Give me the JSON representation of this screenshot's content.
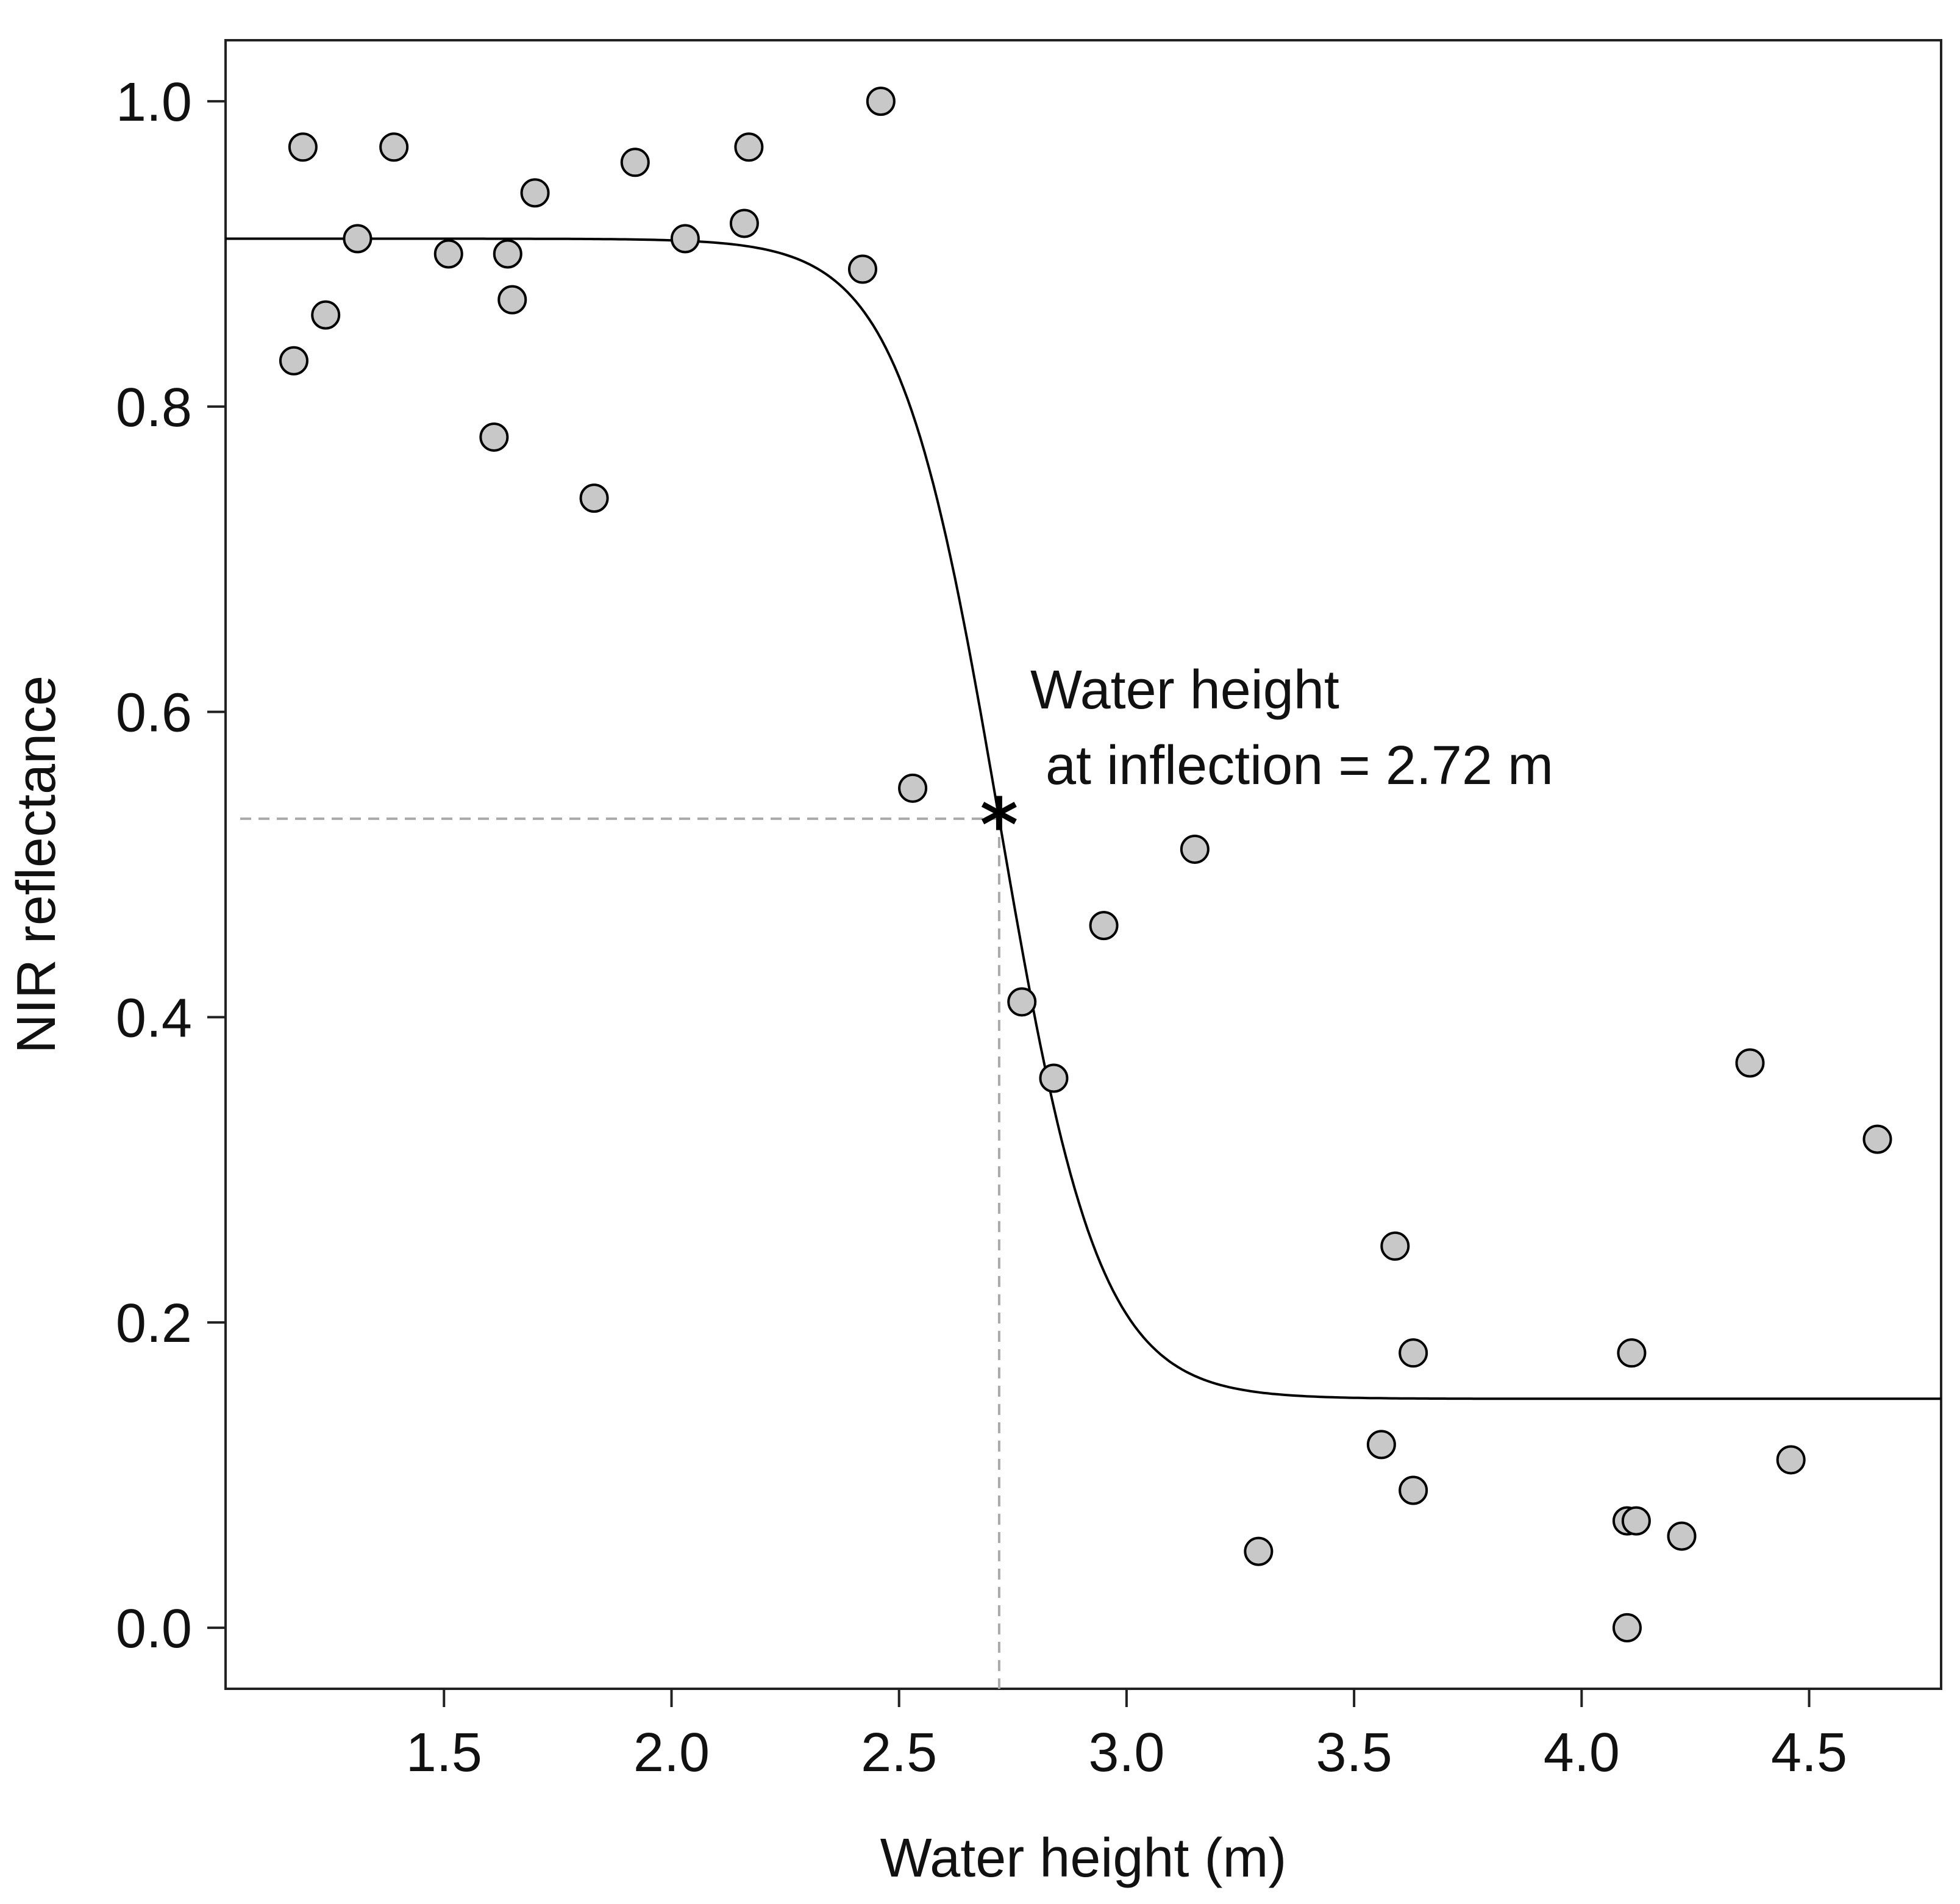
{
  "chart_data": {
    "type": "scatter",
    "title": "",
    "xlabel": "Water height (m)",
    "ylabel": "NIR reflectance",
    "xlim": [
      1.02,
      4.79
    ],
    "ylim": [
      -0.04,
      1.04
    ],
    "grid": false,
    "xticks": [
      1.5,
      2.0,
      2.5,
      3.0,
      3.5,
      4.0,
      4.5
    ],
    "xtick_labels": [
      "1.5",
      "2.0",
      "2.5",
      "3.0",
      "3.5",
      "4.0",
      "4.5"
    ],
    "yticks": [
      0.0,
      0.2,
      0.4,
      0.6,
      0.8,
      1.0
    ],
    "ytick_labels": [
      "0.0",
      "0.2",
      "0.4",
      "0.6",
      "0.8",
      "1.0"
    ],
    "series": [
      {
        "name": "observations",
        "type": "scatter",
        "color": "#c8c8c8",
        "stroke": "#000000",
        "x": [
          1.17,
          1.19,
          1.24,
          1.31,
          1.39,
          1.51,
          1.61,
          1.64,
          1.65,
          1.7,
          1.83,
          1.92,
          2.03,
          2.16,
          2.17,
          2.42,
          2.46,
          2.53,
          2.77,
          2.84,
          2.95,
          3.15,
          3.29,
          3.56,
          3.59,
          3.63,
          3.63,
          4.1,
          4.1,
          4.11,
          4.12,
          4.22,
          4.37,
          4.46,
          4.65
        ],
        "y": [
          0.83,
          0.97,
          0.86,
          0.91,
          0.97,
          0.9,
          0.78,
          0.9,
          0.87,
          0.94,
          0.74,
          0.96,
          0.91,
          0.92,
          0.97,
          0.89,
          1.0,
          0.55,
          0.41,
          0.36,
          0.46,
          0.51,
          0.05,
          0.12,
          0.25,
          0.18,
          0.09,
          0.07,
          0.0,
          0.18,
          0.07,
          0.06,
          0.37,
          0.11,
          0.32
        ]
      },
      {
        "name": "logistic fit",
        "type": "line",
        "color": "#000000",
        "model": {
          "upper": 0.91,
          "lower": 0.15,
          "inflection_x": 2.72,
          "scale": 0.11
        }
      }
    ],
    "inflection_point": {
      "x": 2.72,
      "y": 0.53,
      "marker": "*"
    },
    "reference_lines": {
      "style": "dashed",
      "color": "#aaaaaa"
    },
    "annotation": {
      "line1": "Water height",
      "line2": " at inflection = 2.72 m"
    }
  }
}
